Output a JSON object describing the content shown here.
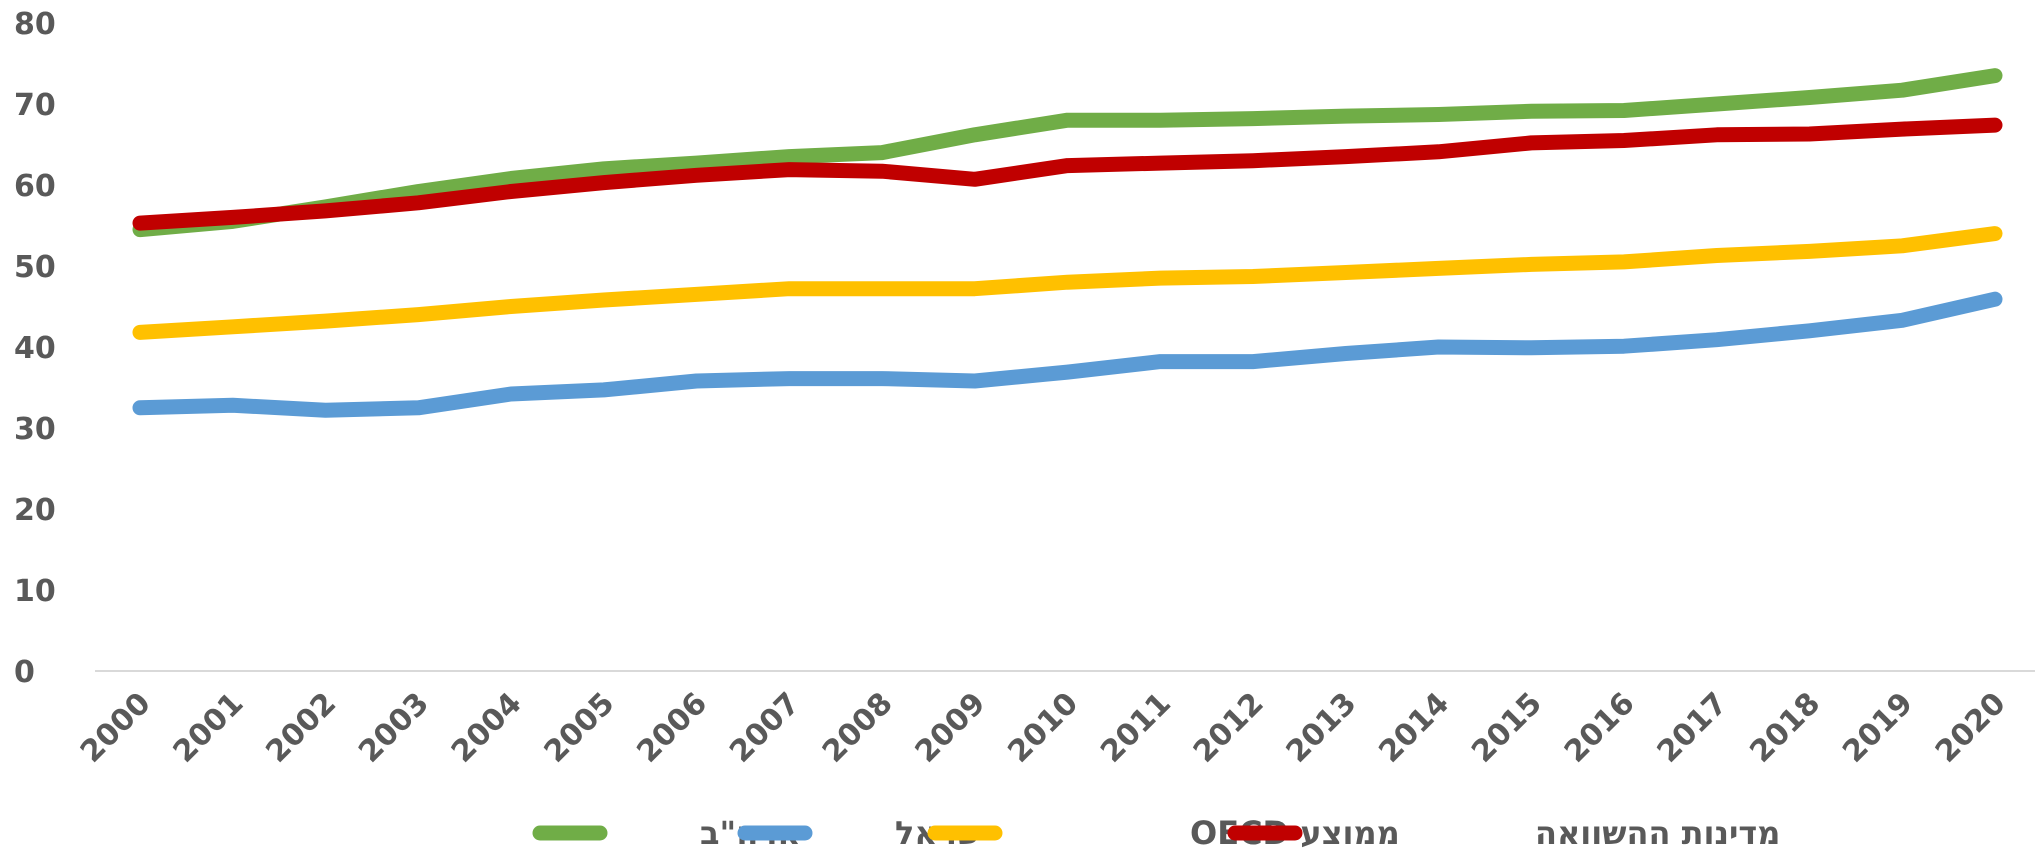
{
  "chart_data": {
    "type": "line",
    "title": "",
    "xlabel": "",
    "ylabel": "",
    "ylim": [
      0,
      80
    ],
    "yticks": [
      0,
      10,
      20,
      30,
      40,
      50,
      60,
      70,
      80
    ],
    "grid": false,
    "legend_position": "bottom",
    "categories": [
      "2000",
      "2001",
      "2002",
      "2003",
      "2004",
      "2005",
      "2006",
      "2007",
      "2008",
      "2009",
      "2010",
      "2011",
      "2012",
      "2013",
      "2014",
      "2015",
      "2016",
      "2017",
      "2018",
      "2019",
      "2020"
    ],
    "series": [
      {
        "name": "ארה\"ב",
        "color": "#70ad47",
        "values": [
          54.5,
          55.5,
          57.3,
          59.2,
          60.8,
          62.0,
          62.7,
          63.5,
          64.0,
          66.2,
          68.0,
          68.0,
          68.2,
          68.5,
          68.7,
          69.1,
          69.2,
          70.0,
          70.8,
          71.7,
          73.5
        ]
      },
      {
        "name": "ישראל",
        "color": "#5b9bd5",
        "values": [
          32.5,
          32.8,
          32.2,
          32.5,
          34.2,
          34.7,
          35.8,
          36.1,
          36.1,
          35.8,
          36.9,
          38.2,
          38.2,
          39.2,
          40.0,
          39.9,
          40.1,
          40.9,
          42.0,
          43.3,
          45.9
        ]
      },
      {
        "name": "ממוצע OECD",
        "color": "#ffc000",
        "values": [
          41.8,
          42.5,
          43.2,
          44.0,
          45.0,
          45.8,
          46.5,
          47.2,
          47.2,
          47.2,
          48.0,
          48.5,
          48.7,
          49.2,
          49.7,
          50.2,
          50.5,
          51.3,
          51.8,
          52.5,
          54.0
        ]
      },
      {
        "name": "מדינות ההשוואה",
        "color": "#c00000",
        "values": [
          55.3,
          56.0,
          56.8,
          57.8,
          59.2,
          60.3,
          61.2,
          61.9,
          61.7,
          60.7,
          62.4,
          62.7,
          63.0,
          63.5,
          64.1,
          65.2,
          65.5,
          66.2,
          66.3,
          66.9,
          67.4
        ]
      }
    ]
  }
}
